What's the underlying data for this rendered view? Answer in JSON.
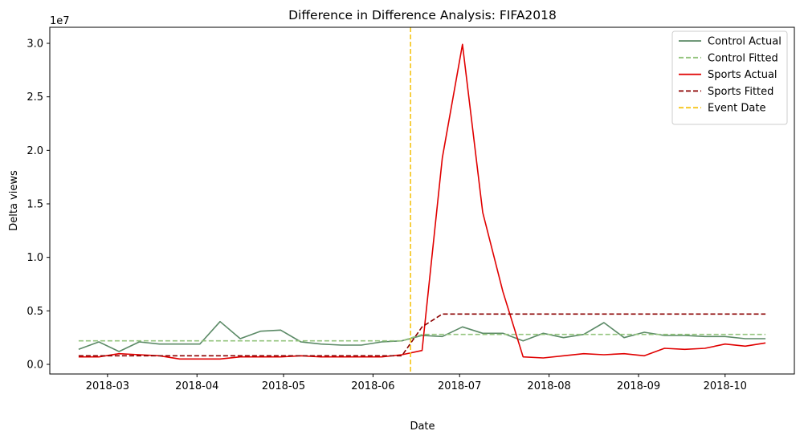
{
  "chart_data": {
    "type": "line",
    "title": "Difference in Difference Analysis: FIFA2018",
    "xlabel": "Date",
    "ylabel": "Delta views",
    "y_scale_label": "1e7",
    "x": [
      "2018-02-19",
      "2018-02-26",
      "2018-03-05",
      "2018-03-12",
      "2018-03-19",
      "2018-03-26",
      "2018-04-02",
      "2018-04-09",
      "2018-04-16",
      "2018-04-23",
      "2018-04-30",
      "2018-05-07",
      "2018-05-14",
      "2018-05-21",
      "2018-05-28",
      "2018-06-04",
      "2018-06-11",
      "2018-06-18",
      "2018-06-25",
      "2018-07-02",
      "2018-07-09",
      "2018-07-16",
      "2018-07-23",
      "2018-07-30",
      "2018-08-06",
      "2018-08-13",
      "2018-08-20",
      "2018-08-27",
      "2018-09-03",
      "2018-09-10",
      "2018-09-17",
      "2018-09-24",
      "2018-10-01",
      "2018-10-08",
      "2018-10-15"
    ],
    "xlim": [
      "2018-02-09",
      "2018-10-25"
    ],
    "ylim": [
      -900000,
      31500000
    ],
    "x_ticks": [
      "2018-03-01",
      "2018-04-01",
      "2018-05-01",
      "2018-06-01",
      "2018-07-01",
      "2018-08-01",
      "2018-09-01",
      "2018-10-01"
    ],
    "x_tick_labels": [
      "2018-03",
      "2018-04",
      "2018-05",
      "2018-06",
      "2018-07",
      "2018-08",
      "2018-09",
      "2018-10"
    ],
    "y_ticks": [
      0,
      5000000,
      10000000,
      15000000,
      20000000,
      25000000,
      30000000
    ],
    "y_tick_labels": [
      "0.0",
      "0.5",
      "1.0",
      "1.5",
      "2.0",
      "2.5",
      "3.0"
    ],
    "series": [
      {
        "name": "Control Actual",
        "color": "#5b8a66",
        "style": "solid",
        "values": [
          1400000,
          2100000,
          1200000,
          2100000,
          1900000,
          1900000,
          1900000,
          4000000,
          2400000,
          3100000,
          3200000,
          2100000,
          1900000,
          1800000,
          1800000,
          2100000,
          2200000,
          2700000,
          2600000,
          3500000,
          2900000,
          2900000,
          2200000,
          2900000,
          2500000,
          2800000,
          3900000,
          2500000,
          3000000,
          2700000,
          2700000,
          2600000,
          2600000,
          2400000,
          2400000
        ]
      },
      {
        "name": "Control Fitted",
        "color": "#93c47d",
        "style": "dashed",
        "values": [
          2200000,
          2200000,
          2200000,
          2200000,
          2200000,
          2200000,
          2200000,
          2200000,
          2200000,
          2200000,
          2200000,
          2200000,
          2200000,
          2200000,
          2200000,
          2200000,
          2200000,
          2800000,
          2800000,
          2800000,
          2800000,
          2800000,
          2800000,
          2800000,
          2800000,
          2800000,
          2800000,
          2800000,
          2800000,
          2800000,
          2800000,
          2800000,
          2800000,
          2800000,
          2800000
        ]
      },
      {
        "name": "Sports Actual",
        "color": "#e00000",
        "style": "solid",
        "values": [
          700000,
          700000,
          1000000,
          900000,
          800000,
          500000,
          500000,
          500000,
          700000,
          700000,
          700000,
          800000,
          700000,
          700000,
          700000,
          700000,
          900000,
          1300000,
          19300000,
          29900000,
          14200000,
          6800000,
          700000,
          600000,
          800000,
          1000000,
          900000,
          1000000,
          800000,
          1500000,
          1400000,
          1500000,
          1900000,
          1700000,
          2000000
        ]
      },
      {
        "name": "Sports Fitted",
        "color": "#8b0000",
        "style": "dashed",
        "values": [
          800000,
          800000,
          800000,
          800000,
          800000,
          800000,
          800000,
          800000,
          800000,
          800000,
          800000,
          800000,
          800000,
          800000,
          800000,
          800000,
          800000,
          3500000,
          4700000,
          4700000,
          4700000,
          4700000,
          4700000,
          4700000,
          4700000,
          4700000,
          4700000,
          4700000,
          4700000,
          4700000,
          4700000,
          4700000,
          4700000,
          4700000,
          4700000
        ]
      }
    ],
    "event": {
      "name": "Event Date",
      "date": "2018-06-14",
      "color": "#f5c518",
      "style": "dashed"
    },
    "legend": "top-right",
    "grid": false
  }
}
